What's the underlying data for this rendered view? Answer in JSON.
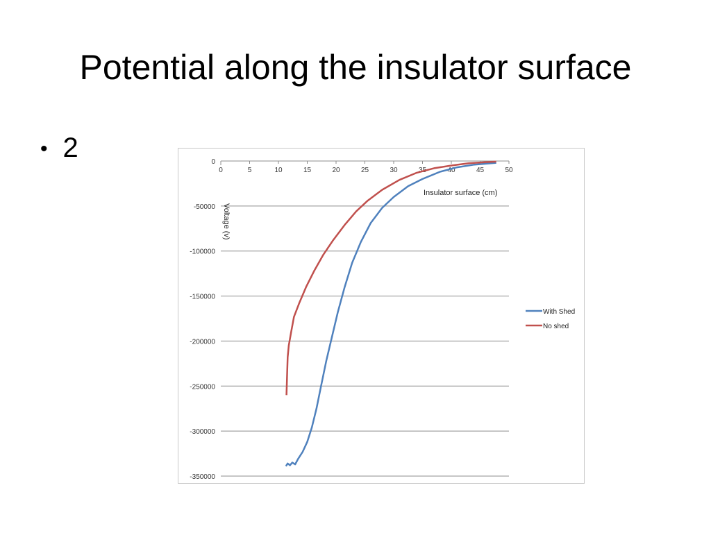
{
  "slide": {
    "title": "Potential along the insulator surface",
    "bullet": "2"
  },
  "chart_data": {
    "type": "line",
    "xlabel": "Insulator surface (cm)",
    "ylabel": "Voltage (v)",
    "xlim": [
      0,
      50
    ],
    "ylim": [
      -350000,
      0
    ],
    "x_ticks": [
      0,
      5,
      10,
      15,
      20,
      25,
      30,
      35,
      40,
      45,
      50
    ],
    "y_ticks": [
      0,
      -50000,
      -100000,
      -150000,
      -200000,
      -250000,
      -300000,
      -350000
    ],
    "grid": true,
    "legend": "right",
    "series": [
      {
        "name": "With Shed",
        "color": "#4f81bd",
        "x": [
          11.3,
          11.6,
          12.0,
          12.4,
          12.9,
          13.4,
          14.2,
          15.0,
          15.8,
          16.6,
          17.4,
          18.3,
          19.3,
          20.3,
          21.5,
          22.8,
          24.3,
          26.0,
          28.0,
          30.0,
          32.5,
          35.0,
          38.0,
          41.0,
          44.0,
          47.8
        ],
        "y": [
          -339000,
          -336000,
          -338000,
          -335000,
          -337000,
          -331000,
          -323000,
          -312000,
          -296000,
          -275000,
          -250000,
          -222000,
          -195000,
          -168000,
          -140000,
          -113000,
          -90000,
          -69000,
          -52000,
          -40000,
          -28000,
          -20000,
          -12000,
          -7000,
          -4000,
          -2000
        ]
      },
      {
        "name": "No shed",
        "color": "#c0504d",
        "x": [
          11.4,
          11.5,
          11.6,
          11.8,
          12.2,
          12.7,
          13.6,
          14.8,
          16.2,
          17.8,
          19.5,
          21.5,
          23.5,
          25.5,
          28.0,
          31.0,
          34.0,
          37.0,
          40.0,
          43.0,
          46.0,
          47.8
        ],
        "y": [
          -260000,
          -240000,
          -218000,
          -205000,
          -190000,
          -173000,
          -158000,
          -140000,
          -122000,
          -104000,
          -88000,
          -71000,
          -56000,
          -44000,
          -32000,
          -21000,
          -13000,
          -8000,
          -5000,
          -2500,
          -1200,
          -700
        ]
      }
    ]
  }
}
